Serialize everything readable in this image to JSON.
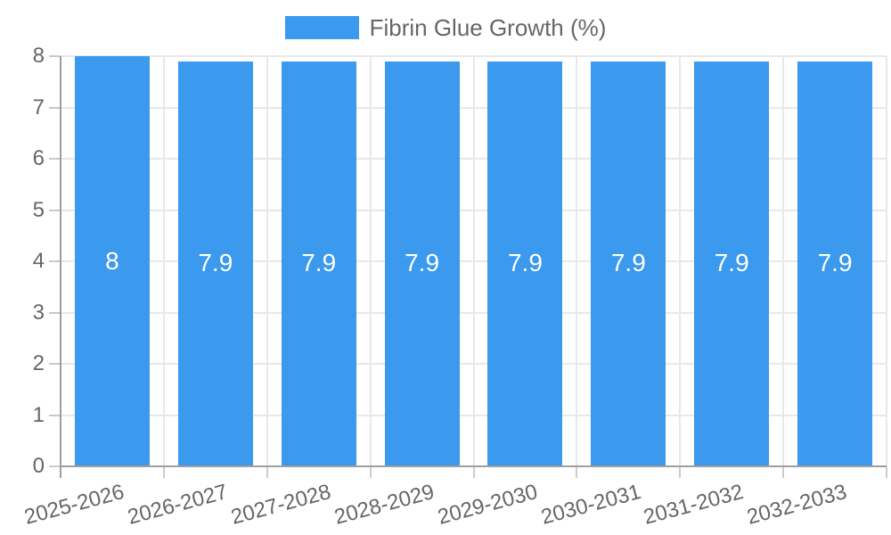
{
  "chart_data": {
    "type": "bar",
    "legend_label": "Fibrin Glue Growth (%)",
    "legend_position": "top",
    "categories": [
      "2025-2026",
      "2026-2027",
      "2027-2028",
      "2028-2029",
      "2029-2030",
      "2030-2031",
      "2031-2032",
      "2032-2033"
    ],
    "values": [
      8,
      7.9,
      7.9,
      7.9,
      7.9,
      7.9,
      7.9,
      7.9
    ],
    "value_labels": [
      "8",
      "7.9",
      "7.9",
      "7.9",
      "7.9",
      "7.9",
      "7.9",
      "7.9"
    ],
    "yticks": [
      0,
      1,
      2,
      3,
      4,
      5,
      6,
      7,
      8
    ],
    "ylim": [
      0,
      8
    ],
    "xlabel": "",
    "ylabel": "",
    "grid": true,
    "colors": {
      "bar": "#3B99EE",
      "tick_text": "#666666",
      "value_text": "#ffffff",
      "gridline": "#e8e8e8",
      "axis_line": "#9e9e9e"
    }
  }
}
